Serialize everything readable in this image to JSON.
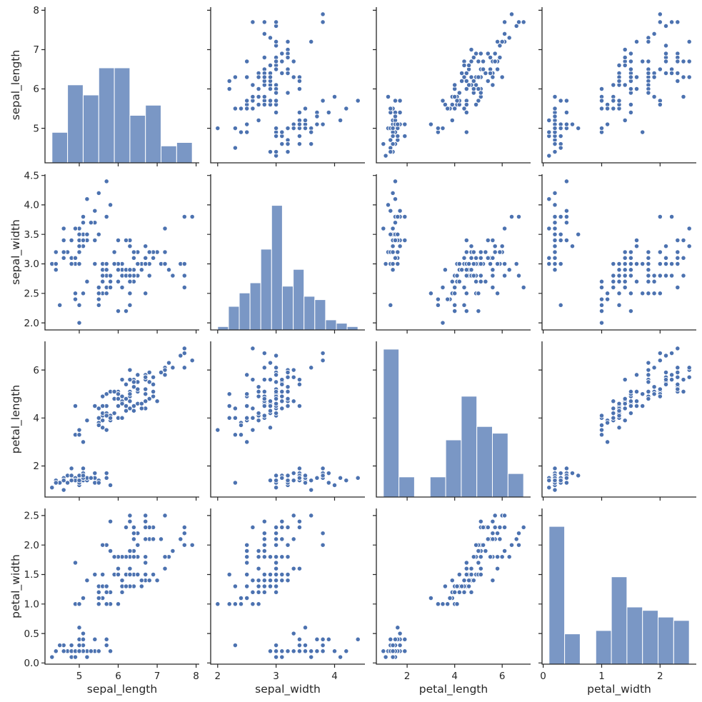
{
  "chart_data": {
    "type": "scatter",
    "subtype": "scatter-matrix-pairplot",
    "title": "",
    "legend": null,
    "grid": {
      "rows": 4,
      "cols": 4,
      "diagonal": "histogram",
      "off_diagonal": "scatter",
      "gridlines": false
    },
    "variables": [
      "sepal_length",
      "sepal_width",
      "petal_length",
      "petal_width"
    ],
    "axis_labels": [
      "sepal_length",
      "sepal_width",
      "petal_length",
      "petal_width"
    ],
    "axes": {
      "sepal_length": {
        "lim": [
          4.12,
          8.08
        ],
        "x_ticks": [
          5,
          6,
          7,
          8
        ],
        "x_tick_labels": [
          "5",
          "6",
          "7",
          "8"
        ],
        "y_ticks": [
          5,
          6,
          7,
          8
        ],
        "y_tick_labels": [
          "5",
          "6",
          "7",
          "8"
        ]
      },
      "sepal_width": {
        "lim": [
          1.88,
          4.52
        ],
        "x_ticks": [
          2,
          3,
          4
        ],
        "x_tick_labels": [
          "2",
          "3",
          "4"
        ],
        "y_ticks": [
          2,
          2.5,
          3,
          3.5,
          4,
          4.5
        ],
        "y_tick_labels": [
          "2.0",
          "2.5",
          "3.0",
          "3.5",
          "4.0",
          "4.5"
        ]
      },
      "petal_length": {
        "lim": [
          0.705,
          7.195
        ],
        "x_ticks": [
          2,
          4,
          6
        ],
        "x_tick_labels": [
          "2",
          "4",
          "6"
        ],
        "y_ticks": [
          2,
          4,
          6
        ],
        "y_tick_labels": [
          "2",
          "4",
          "6"
        ]
      },
      "petal_width": {
        "lim": [
          -0.02,
          2.62
        ],
        "x_ticks": [
          0,
          1,
          2
        ],
        "x_tick_labels": [
          "0",
          "1",
          "2"
        ],
        "y_ticks": [
          0,
          0.5,
          1,
          1.5,
          2,
          2.5
        ],
        "y_tick_labels": [
          "0.0",
          "0.5",
          "1.0",
          "1.5",
          "2.0",
          "2.5"
        ]
      }
    },
    "histograms": {
      "sepal_length": {
        "bin_start": 4.3,
        "bin_end": 7.9,
        "bin_counts": [
          9,
          23,
          20,
          28,
          28,
          14,
          17,
          5,
          6
        ],
        "peak_fraction": 0.61
      },
      "sepal_width": {
        "bin_start": 2.0,
        "bin_end": 4.4,
        "bin_counts": [
          1,
          7,
          11,
          14,
          24,
          37,
          13,
          18,
          10,
          9,
          3,
          2,
          1
        ],
        "peak_fraction": 0.8
      },
      "petal_length": {
        "bin_start": 1.0,
        "bin_end": 6.9,
        "bin_counts": [
          44,
          6,
          0,
          6,
          17,
          30,
          21,
          19,
          7
        ],
        "peak_fraction": 0.95
      },
      "petal_width": {
        "bin_start": 0.1,
        "bin_end": 2.5,
        "bin_counts": [
          41,
          9,
          0,
          10,
          26,
          17,
          16,
          14,
          13
        ],
        "peak_fraction": 0.885
      }
    },
    "data": {
      "sepal_length": [
        5.1,
        4.9,
        4.7,
        4.6,
        5.0,
        5.4,
        4.6,
        5.0,
        4.4,
        4.9,
        5.4,
        4.8,
        4.8,
        4.3,
        5.8,
        5.7,
        5.4,
        5.1,
        5.7,
        5.1,
        5.4,
        5.1,
        4.6,
        5.1,
        4.8,
        5.0,
        5.0,
        5.2,
        5.2,
        4.7,
        4.8,
        5.4,
        5.2,
        5.5,
        4.9,
        5.0,
        5.5,
        4.9,
        4.4,
        5.1,
        5.0,
        4.5,
        4.4,
        5.0,
        5.1,
        4.8,
        5.1,
        4.6,
        5.3,
        5.0,
        7.0,
        6.4,
        6.9,
        5.5,
        6.5,
        5.7,
        6.3,
        4.9,
        6.6,
        5.2,
        5.0,
        5.9,
        6.0,
        6.1,
        5.6,
        6.7,
        5.6,
        5.8,
        6.2,
        5.6,
        5.9,
        6.1,
        6.3,
        6.1,
        6.4,
        6.6,
        6.8,
        6.7,
        6.0,
        5.7,
        5.5,
        5.5,
        5.8,
        6.0,
        5.4,
        6.0,
        6.7,
        6.3,
        5.6,
        5.5,
        5.5,
        6.1,
        5.8,
        5.0,
        5.6,
        5.7,
        5.7,
        6.2,
        5.1,
        5.7,
        6.3,
        5.8,
        7.1,
        6.3,
        6.5,
        7.6,
        4.9,
        7.3,
        6.7,
        7.2,
        6.5,
        6.4,
        6.8,
        5.7,
        5.8,
        6.4,
        6.5,
        7.7,
        7.7,
        6.0,
        6.9,
        5.6,
        7.7,
        6.3,
        6.7,
        7.2,
        6.2,
        6.1,
        6.4,
        7.2,
        7.4,
        7.9,
        6.4,
        6.3,
        6.1,
        7.7,
        6.3,
        6.4,
        6.0,
        6.9,
        6.7,
        6.9,
        5.8,
        6.8,
        6.7,
        6.7,
        6.3,
        6.5,
        6.2,
        5.9
      ],
      "sepal_width": [
        3.5,
        3.0,
        3.2,
        3.1,
        3.6,
        3.9,
        3.4,
        3.4,
        2.9,
        3.1,
        3.7,
        3.4,
        3.0,
        3.0,
        4.0,
        4.4,
        3.9,
        3.5,
        3.8,
        3.8,
        3.4,
        3.7,
        3.6,
        3.3,
        3.4,
        3.0,
        3.4,
        3.5,
        3.4,
        3.2,
        3.1,
        3.4,
        4.1,
        4.2,
        3.1,
        3.2,
        3.5,
        3.6,
        3.0,
        3.4,
        3.5,
        2.3,
        3.2,
        3.5,
        3.8,
        3.0,
        3.8,
        3.2,
        3.7,
        3.3,
        3.2,
        3.2,
        3.1,
        2.3,
        2.8,
        2.8,
        3.3,
        2.4,
        2.9,
        2.7,
        2.0,
        3.0,
        2.2,
        2.9,
        2.9,
        3.1,
        3.0,
        2.7,
        2.2,
        2.5,
        3.2,
        2.8,
        2.5,
        2.8,
        2.9,
        3.0,
        2.8,
        3.0,
        2.9,
        2.6,
        2.4,
        2.4,
        2.7,
        2.7,
        3.0,
        3.4,
        3.1,
        2.3,
        3.0,
        2.5,
        2.6,
        3.0,
        2.6,
        2.3,
        2.7,
        3.0,
        2.9,
        2.9,
        2.5,
        2.8,
        3.3,
        2.7,
        3.0,
        2.9,
        3.0,
        3.0,
        2.5,
        2.9,
        2.5,
        3.6,
        3.2,
        2.7,
        3.0,
        2.5,
        2.8,
        3.2,
        3.0,
        3.8,
        2.6,
        2.2,
        3.2,
        2.8,
        2.8,
        2.7,
        3.3,
        3.2,
        2.8,
        3.0,
        2.8,
        3.0,
        2.8,
        3.8,
        2.8,
        2.8,
        2.6,
        3.0,
        3.4,
        3.1,
        3.0,
        3.1,
        3.1,
        3.1,
        2.7,
        3.2,
        3.3,
        3.0,
        2.5,
        3.0,
        3.4,
        3.0
      ],
      "petal_length": [
        1.4,
        1.4,
        1.3,
        1.5,
        1.4,
        1.7,
        1.4,
        1.5,
        1.4,
        1.5,
        1.5,
        1.6,
        1.4,
        1.1,
        1.2,
        1.5,
        1.3,
        1.4,
        1.7,
        1.5,
        1.7,
        1.5,
        1.0,
        1.7,
        1.9,
        1.6,
        1.6,
        1.5,
        1.4,
        1.6,
        1.6,
        1.5,
        1.5,
        1.4,
        1.5,
        1.2,
        1.3,
        1.4,
        1.3,
        1.5,
        1.3,
        1.3,
        1.3,
        1.6,
        1.9,
        1.4,
        1.6,
        1.4,
        1.5,
        1.4,
        4.7,
        4.5,
        4.9,
        4.0,
        4.6,
        4.5,
        4.7,
        3.3,
        4.6,
        3.9,
        3.5,
        4.2,
        4.0,
        4.7,
        3.6,
        4.4,
        4.5,
        4.1,
        4.5,
        3.9,
        4.8,
        4.0,
        4.9,
        4.7,
        4.3,
        4.4,
        4.8,
        5.0,
        4.5,
        3.5,
        3.8,
        3.7,
        3.9,
        5.1,
        4.5,
        4.5,
        4.7,
        4.4,
        4.1,
        4.0,
        4.4,
        4.6,
        4.0,
        3.3,
        4.2,
        4.2,
        4.2,
        4.3,
        3.0,
        4.1,
        6.0,
        5.1,
        5.9,
        5.6,
        5.8,
        6.6,
        4.5,
        6.3,
        5.8,
        6.1,
        5.1,
        5.3,
        5.5,
        5.0,
        5.1,
        5.3,
        5.5,
        6.7,
        6.9,
        5.0,
        5.7,
        4.9,
        6.7,
        4.9,
        5.7,
        6.0,
        4.8,
        4.9,
        5.6,
        5.8,
        6.1,
        6.4,
        5.6,
        5.1,
        5.6,
        6.1,
        5.6,
        5.5,
        4.8,
        5.4,
        5.6,
        5.1,
        5.1,
        5.9,
        5.7,
        5.2,
        5.0,
        5.2,
        5.4,
        5.1
      ],
      "petal_width": [
        0.2,
        0.2,
        0.2,
        0.2,
        0.2,
        0.4,
        0.3,
        0.2,
        0.2,
        0.1,
        0.2,
        0.2,
        0.1,
        0.1,
        0.2,
        0.4,
        0.4,
        0.3,
        0.3,
        0.3,
        0.2,
        0.4,
        0.2,
        0.5,
        0.2,
        0.2,
        0.4,
        0.2,
        0.2,
        0.2,
        0.2,
        0.4,
        0.1,
        0.2,
        0.2,
        0.2,
        0.2,
        0.1,
        0.2,
        0.2,
        0.3,
        0.3,
        0.2,
        0.6,
        0.4,
        0.3,
        0.2,
        0.2,
        0.2,
        0.2,
        1.4,
        1.5,
        1.5,
        1.3,
        1.5,
        1.3,
        1.6,
        1.0,
        1.3,
        1.4,
        1.0,
        1.5,
        1.0,
        1.4,
        1.3,
        1.4,
        1.5,
        1.0,
        1.5,
        1.1,
        1.8,
        1.3,
        1.5,
        1.2,
        1.3,
        1.4,
        1.4,
        1.7,
        1.5,
        1.0,
        1.1,
        1.0,
        1.2,
        1.6,
        1.5,
        1.6,
        1.5,
        1.3,
        1.3,
        1.3,
        1.2,
        1.4,
        1.2,
        1.0,
        1.3,
        1.2,
        1.3,
        1.3,
        1.1,
        1.3,
        2.5,
        1.9,
        2.1,
        1.8,
        2.2,
        2.1,
        1.7,
        1.8,
        1.8,
        2.5,
        2.0,
        1.9,
        2.1,
        2.0,
        2.4,
        2.3,
        1.8,
        2.2,
        2.3,
        1.5,
        2.3,
        2.0,
        2.0,
        1.8,
        2.1,
        1.8,
        1.8,
        1.8,
        2.1,
        1.6,
        1.9,
        2.0,
        2.2,
        1.5,
        1.4,
        2.3,
        2.4,
        1.8,
        1.8,
        2.1,
        2.4,
        2.3,
        1.9,
        2.3,
        2.5,
        2.3,
        1.9,
        2.0,
        2.3,
        1.8
      ]
    },
    "style": {
      "point_color": "#4c72b0",
      "point_edge_color": "#ffffff",
      "bar_color": "#7a97c5",
      "bar_edge_color": "#ffffff",
      "axis_color": "#262626",
      "text_color": "#262626",
      "background": "#ffffff"
    }
  }
}
